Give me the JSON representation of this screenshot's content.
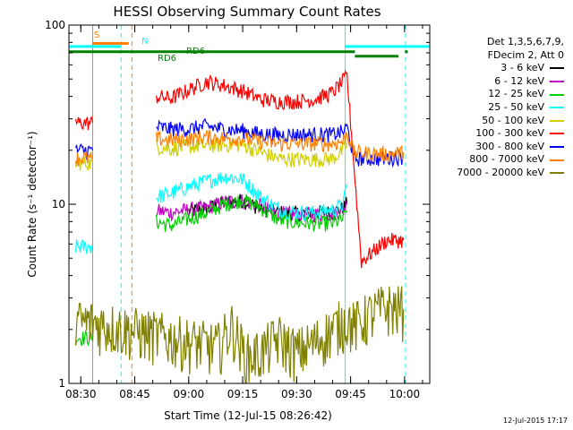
{
  "chart_data": {
    "type": "line",
    "title": "HESSI Observing Summary Count Rates",
    "xlabel": "Start Time (12-Jul-15 08:26:42)",
    "ylabel": "Count Rate (s⁻¹ detector⁻¹)",
    "yscale": "log",
    "ylim": [
      1,
      100
    ],
    "xlim_minutes": [
      506.7,
      607.0
    ],
    "x_ticks": [
      {
        "label": "08:30",
        "minute": 510
      },
      {
        "label": "08:45",
        "minute": 525
      },
      {
        "label": "09:00",
        "minute": 540
      },
      {
        "label": "09:15",
        "minute": 555
      },
      {
        "label": "09:30",
        "minute": 570
      },
      {
        "label": "09:45",
        "minute": 585
      },
      {
        "label": "10:00",
        "minute": 600
      }
    ],
    "y_ticks": [
      {
        "label": "1",
        "value": 1
      },
      {
        "label": "10",
        "value": 10
      },
      {
        "label": "100",
        "value": 100
      }
    ],
    "grid": false,
    "legend_position": "right",
    "legend_header": [
      "Det 1,3,5,6,7,9,",
      "FDecim 2, Att 0"
    ],
    "series": [
      {
        "name": "3 - 6 keV",
        "color": "#000000",
        "points": [
          [
            508.6,
            null
          ],
          [
            540,
            9.2
          ],
          [
            545,
            9.4
          ],
          [
            550,
            10.2
          ],
          [
            555,
            10.5
          ],
          [
            560,
            9.5
          ],
          [
            565,
            9.0
          ],
          [
            570,
            8.9
          ],
          [
            575,
            9.0
          ],
          [
            580,
            9.0
          ],
          [
            583,
            9.5
          ],
          [
            584,
            10.2
          ],
          [
            594,
            null
          ]
        ]
      },
      {
        "name": "6 - 12 keV",
        "color": "#c000c0",
        "points": [
          [
            531,
            9.2
          ],
          [
            535,
            9.0
          ],
          [
            540,
            9.3
          ],
          [
            545,
            9.6
          ],
          [
            550,
            10.3
          ],
          [
            555,
            10.5
          ],
          [
            560,
            9.8
          ],
          [
            565,
            8.9
          ],
          [
            570,
            8.8
          ],
          [
            575,
            8.8
          ],
          [
            580,
            8.9
          ],
          [
            583,
            9.4
          ],
          [
            584,
            10.0
          ]
        ]
      },
      {
        "name": "12 - 25 keV",
        "color": "#00d000",
        "points": [
          [
            508.6,
            1.8
          ],
          [
            513.3,
            1.8
          ],
          [
            531,
            8.0
          ],
          [
            535,
            7.6
          ],
          [
            540,
            8.3
          ],
          [
            545,
            9.0
          ],
          [
            550,
            10.0
          ],
          [
            555,
            10.6
          ],
          [
            560,
            9.6
          ],
          [
            565,
            8.2
          ],
          [
            570,
            7.9
          ],
          [
            575,
            7.8
          ],
          [
            580,
            7.8
          ],
          [
            583,
            8.3
          ],
          [
            584,
            9.2
          ]
        ]
      },
      {
        "name": "25 - 50 keV",
        "color": "#00ffff",
        "points": [
          [
            508.6,
            5.8
          ],
          [
            513.3,
            5.8
          ],
          [
            531,
            11.0
          ],
          [
            535,
            11.5
          ],
          [
            540,
            12.5
          ],
          [
            545,
            13.5
          ],
          [
            550,
            14.3
          ],
          [
            555,
            13.8
          ],
          [
            560,
            11.0
          ],
          [
            565,
            9.4
          ],
          [
            570,
            9.0
          ],
          [
            575,
            9.0
          ],
          [
            580,
            9.3
          ],
          [
            583,
            10.0
          ],
          [
            584,
            13.0
          ]
        ]
      },
      {
        "name": "50 - 100 keV",
        "color": "#d0d000",
        "points": [
          [
            508.6,
            17.0
          ],
          [
            513.3,
            17.0
          ],
          [
            531,
            21.0
          ],
          [
            535,
            20.5
          ],
          [
            540,
            21.0
          ],
          [
            545,
            21.3
          ],
          [
            550,
            21.5
          ],
          [
            555,
            21.5
          ],
          [
            560,
            19.5
          ],
          [
            565,
            18.0
          ],
          [
            570,
            17.8
          ],
          [
            575,
            17.8
          ],
          [
            580,
            18.0
          ],
          [
            583,
            20.0
          ],
          [
            584,
            22.0
          ]
        ]
      },
      {
        "name": "100 - 300 keV",
        "color": "#ff0000",
        "points": [
          [
            508.6,
            28.5
          ],
          [
            513.3,
            28.5
          ],
          [
            531,
            40.0
          ],
          [
            535,
            39.0
          ],
          [
            540,
            43.5
          ],
          [
            545,
            48.5
          ],
          [
            550,
            46.0
          ],
          [
            555,
            43.0
          ],
          [
            560,
            38.5
          ],
          [
            565,
            37.5
          ],
          [
            570,
            37.5
          ],
          [
            575,
            38.5
          ],
          [
            580,
            42.0
          ],
          [
            583,
            49.0
          ],
          [
            584,
            52.0
          ],
          [
            588,
            4.8
          ],
          [
            595,
            6.3
          ],
          [
            598,
            6.3
          ],
          [
            599.7,
            6.3
          ]
        ]
      },
      {
        "name": "300 - 800 keV",
        "color": "#0000ff",
        "points": [
          [
            508.6,
            20.0
          ],
          [
            513.3,
            20.0
          ],
          [
            531,
            27.0
          ],
          [
            535,
            26.3
          ],
          [
            540,
            26.3
          ],
          [
            545,
            27.3
          ],
          [
            550,
            26.2
          ],
          [
            555,
            25.8
          ],
          [
            560,
            24.7
          ],
          [
            565,
            24.4
          ],
          [
            570,
            24.5
          ],
          [
            575,
            24.5
          ],
          [
            580,
            24.5
          ],
          [
            583,
            25.5
          ],
          [
            584,
            27.0
          ],
          [
            586,
            18.0
          ],
          [
            595,
            18.0
          ],
          [
            599.7,
            18.5
          ]
        ]
      },
      {
        "name": "800 - 7000 keV",
        "color": "#ff8000",
        "points": [
          [
            508.6,
            18.0
          ],
          [
            513.3,
            18.0
          ],
          [
            531,
            23.2
          ],
          [
            535,
            22.8
          ],
          [
            540,
            23.2
          ],
          [
            545,
            23.8
          ],
          [
            550,
            23.3
          ],
          [
            555,
            23.3
          ],
          [
            560,
            22.3
          ],
          [
            565,
            21.8
          ],
          [
            570,
            21.8
          ],
          [
            575,
            21.8
          ],
          [
            580,
            21.8
          ],
          [
            583,
            22.5
          ],
          [
            584,
            25.0
          ],
          [
            586,
            19.5
          ],
          [
            595,
            19.0
          ],
          [
            599.7,
            19.5
          ]
        ]
      },
      {
        "name": "7000 - 20000 keV",
        "color": "#808000",
        "points": [
          [
            508.6,
            2.2
          ],
          [
            513.3,
            2.2
          ],
          [
            548,
            1.6
          ],
          [
            552,
            2.1
          ],
          [
            556,
            1.4
          ],
          [
            560,
            1.5
          ],
          [
            565,
            1.8
          ],
          [
            570,
            1.5
          ],
          [
            575,
            1.7
          ],
          [
            584,
            2.3
          ],
          [
            586,
            2.1
          ],
          [
            590,
            2.4
          ],
          [
            595,
            2.7
          ],
          [
            599.7,
            2.6
          ]
        ]
      }
    ],
    "annotations": [
      {
        "text": "S",
        "color": "#ff8000"
      },
      {
        "text": "N",
        "color": "#00ffff"
      },
      {
        "text": "RD6",
        "color": "#008000"
      },
      {
        "text": "RD6",
        "color": "#008000"
      }
    ],
    "state_bars": [
      {
        "name": "SAA",
        "color": "#ff8000",
        "y": 79,
        "x0": 513.3,
        "x1": 523.3
      },
      {
        "name": "Night",
        "color": "#00ffff",
        "y": 76,
        "x0": 506.7,
        "x1": 521.2
      },
      {
        "name": "Night",
        "color": "#00ffff",
        "y": 76,
        "x0": 583.5,
        "x1": 607.0
      },
      {
        "name": "Decimation",
        "color": "#008000",
        "y": 71,
        "x0": 506.7,
        "x1": 586.2
      },
      {
        "name": "Decimation",
        "color": "#008000",
        "y": 67,
        "x0": 586.2,
        "x1": 598.3
      },
      {
        "name": "Decimation",
        "color": "#008000",
        "y": 71,
        "x0": 600.1,
        "x1": 600.9
      }
    ],
    "vertical_markers": [
      {
        "minute": 513.3,
        "color": "#ff8000",
        "style": "solid"
      },
      {
        "minute": 521.2,
        "color": "#00ffff",
        "style": "dashed"
      },
      {
        "minute": 524.2,
        "color": "#ff8000",
        "style": "dashed"
      },
      {
        "minute": 583.5,
        "color": "#00ffff",
        "style": "solid"
      },
      {
        "minute": 600.3,
        "color": "#00ffff",
        "style": "dashed"
      }
    ]
  },
  "timestamp": "12-Jul-2015 17:17"
}
